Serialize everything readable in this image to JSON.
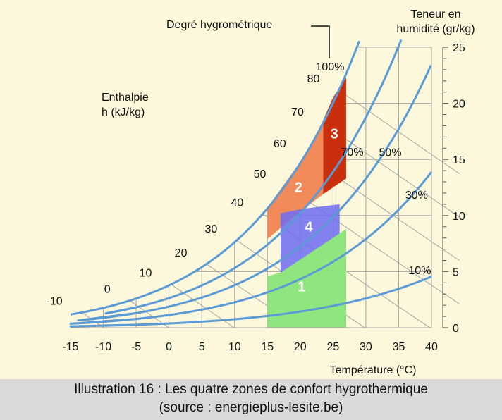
{
  "colors": {
    "background": "#fdf7dc",
    "grid": "#a5a5a5",
    "curve": "#5b9bd5",
    "zone1": "#8fe57e",
    "zone2": "#f28a5a",
    "zone3": "#c92f0c",
    "zone4": "#6d6cf2",
    "caption_bg": "#d9d9d9"
  },
  "chart_data": {
    "type": "psychrometric",
    "xlabel": "Température (°C)",
    "ylabel": "Teneur en humidité (gr/kg)",
    "ylabel_lines": [
      "Teneur en",
      "humidité (gr/kg)"
    ],
    "rh_title": "Degré hygrométrique",
    "enthalpy_title_lines": [
      "Enthalpie",
      "h (kJ/kg)"
    ],
    "xlim": [
      -15,
      40
    ],
    "ylim": [
      0,
      25
    ],
    "x_ticks": [
      -15,
      -10,
      -5,
      0,
      5,
      10,
      15,
      20,
      25,
      30,
      35,
      40
    ],
    "y_ticks": [
      0,
      5,
      10,
      15,
      20,
      25
    ],
    "relative_humidity_curves": [
      {
        "rh": 100,
        "label": "100%"
      },
      {
        "rh": 70,
        "label": "70%"
      },
      {
        "rh": 50,
        "label": "50%"
      },
      {
        "rh": 30,
        "label": "30%"
      },
      {
        "rh": 10,
        "label": "10%"
      }
    ],
    "enthalpy_lines": [
      -10,
      0,
      10,
      20,
      30,
      40,
      50,
      60,
      70,
      80
    ],
    "zones": [
      {
        "label": "1",
        "polygon": [
          [
            15,
            0
          ],
          [
            27,
            0
          ],
          [
            27,
            8.8
          ],
          [
            17,
            4.9
          ],
          [
            15,
            4.6
          ]
        ]
      },
      {
        "label": "2",
        "polygon": [
          [
            15,
            7.9
          ],
          [
            15,
            10.7
          ],
          [
            21,
            15.6
          ],
          [
            23.5,
            18.5
          ],
          [
            23.5,
            11.9
          ],
          [
            20.5,
            10.6
          ]
        ]
      },
      {
        "label": "3",
        "polygon": [
          [
            23.5,
            11.9
          ],
          [
            23.5,
            18.5
          ],
          [
            25,
            20.5
          ],
          [
            27,
            22.3
          ],
          [
            27,
            13.3
          ]
        ]
      },
      {
        "label": "4",
        "polygon": [
          [
            17,
            4.9
          ],
          [
            26,
            8.4
          ],
          [
            26,
            11.0
          ],
          [
            20.5,
            10.6
          ],
          [
            17,
            10.2
          ]
        ]
      }
    ]
  },
  "caption": {
    "line1": "Illustration 16 : Les quatre zones de confort hygrothermique",
    "line2": "(source : energieplus-lesite.be)"
  }
}
